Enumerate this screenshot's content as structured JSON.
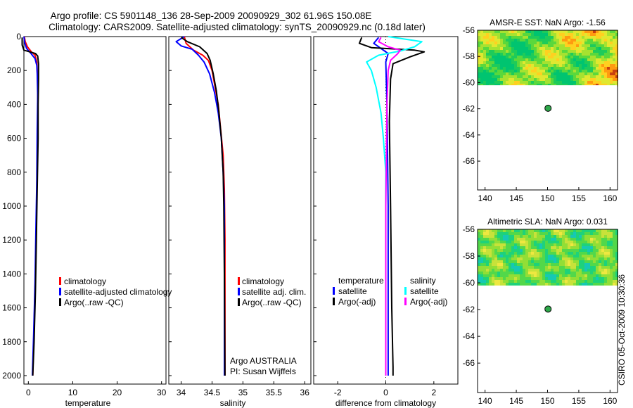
{
  "header": {
    "line1": "Argo profile: CS 5901148_136 28-Sep-2009 20090929_302 61.96S 150.08E",
    "line2": "Climatology: CARS2009. Satellite-adjusted climatology: synTS_20090929.nc (0.18d later)"
  },
  "stamp": "CSIRO 05-Oct-2009 10:30:36",
  "colors": {
    "red": "#ff0000",
    "blue": "#0000ff",
    "black": "#000000",
    "cyan": "#00ffff",
    "magenta": "#ff00ff",
    "float": "#2ea84a"
  },
  "chart_data": [
    {
      "type": "line",
      "id": "temperature",
      "xlabel": "temperature",
      "xlim": [
        -1,
        31
      ],
      "ylim": [
        2050,
        0
      ],
      "xticks": [
        0,
        10,
        20,
        30
      ],
      "yticks": [
        0,
        200,
        400,
        600,
        800,
        1000,
        1200,
        1400,
        1600,
        1800,
        2000
      ],
      "legend": [
        "climatology",
        "satellite-adjusted climatology",
        "Argo(..raw -QC)"
      ],
      "series": [
        {
          "name": "climatology",
          "color": "#ff0000",
          "width": 2,
          "points": [
            [
              -0.9,
              0
            ],
            [
              -0.7,
              30
            ],
            [
              -0.2,
              60
            ],
            [
              0.7,
              90
            ],
            [
              1.5,
              110
            ],
            [
              1.9,
              150
            ],
            [
              2.0,
              200
            ],
            [
              2.1,
              300
            ],
            [
              2.1,
              500
            ],
            [
              2.0,
              800
            ],
            [
              1.8,
              1100
            ],
            [
              1.6,
              1400
            ],
            [
              1.3,
              1700
            ],
            [
              1.0,
              2000
            ]
          ]
        },
        {
          "name": "satellite-adjusted climatology",
          "color": "#0000ff",
          "width": 2,
          "points": [
            [
              -1.0,
              0
            ],
            [
              -0.8,
              40
            ],
            [
              -0.4,
              70
            ],
            [
              0.6,
              100
            ],
            [
              1.5,
              130
            ],
            [
              1.9,
              170
            ],
            [
              2.0,
              220
            ],
            [
              2.1,
              350
            ],
            [
              2.0,
              550
            ],
            [
              1.9,
              850
            ],
            [
              1.7,
              1150
            ],
            [
              1.5,
              1450
            ],
            [
              1.2,
              1750
            ],
            [
              0.9,
              2000
            ]
          ]
        },
        {
          "name": "Argo(..raw -QC)",
          "color": "#000000",
          "width": 2,
          "points": [
            [
              -1.4,
              5
            ],
            [
              -1.4,
              50
            ],
            [
              -1.0,
              80
            ],
            [
              1.6,
              100
            ],
            [
              2.1,
              115
            ],
            [
              2.3,
              160
            ],
            [
              2.3,
              250
            ],
            [
              2.2,
              400
            ],
            [
              2.2,
              600
            ],
            [
              2.0,
              900
            ],
            [
              1.8,
              1200
            ],
            [
              1.6,
              1500
            ],
            [
              1.3,
              1800
            ],
            [
              1.0,
              2000
            ]
          ]
        }
      ]
    },
    {
      "type": "line",
      "id": "salinity",
      "xlabel": "salinity",
      "xlim": [
        33.8,
        36.1
      ],
      "ylim": [
        2050,
        0
      ],
      "xticks": [
        34,
        34.5,
        35,
        35.5,
        36
      ],
      "xticklabels": [
        "34",
        "34.5",
        "35",
        "35.5",
        "36"
      ],
      "legend": [
        "climatology",
        "satellite adj. clim.",
        "Argo(..raw -QC)"
      ],
      "annotation": [
        "Argo AUSTRALIA",
        "PI: Susan Wijffels"
      ],
      "series": [
        {
          "name": "climatology",
          "color": "#ff0000",
          "width": 2,
          "points": [
            [
              34.05,
              0
            ],
            [
              34.08,
              40
            ],
            [
              34.2,
              80
            ],
            [
              34.35,
              110
            ],
            [
              34.44,
              140
            ],
            [
              34.5,
              200
            ],
            [
              34.55,
              300
            ],
            [
              34.6,
              400
            ],
            [
              34.64,
              550
            ],
            [
              34.68,
              700
            ],
            [
              34.7,
              900
            ],
            [
              34.71,
              1200
            ],
            [
              34.71,
              1600
            ],
            [
              34.71,
              2000
            ]
          ]
        },
        {
          "name": "satellite adj. clim.",
          "color": "#0000ff",
          "width": 2,
          "points": [
            [
              34.05,
              0
            ],
            [
              33.92,
              30
            ],
            [
              34.0,
              55
            ],
            [
              34.18,
              75
            ],
            [
              34.28,
              110
            ],
            [
              34.37,
              150
            ],
            [
              34.46,
              220
            ],
            [
              34.54,
              330
            ],
            [
              34.6,
              450
            ],
            [
              34.65,
              600
            ],
            [
              34.68,
              800
            ],
            [
              34.7,
              1000
            ],
            [
              34.7,
              1400
            ],
            [
              34.7,
              2000
            ]
          ]
        },
        {
          "name": "Argo(..raw -QC)",
          "color": "#000000",
          "width": 2,
          "points": [
            [
              34.0,
              5
            ],
            [
              34.1,
              30
            ],
            [
              34.3,
              60
            ],
            [
              34.42,
              100
            ],
            [
              34.47,
              140
            ],
            [
              34.52,
              220
            ],
            [
              34.57,
              320
            ],
            [
              34.61,
              440
            ],
            [
              34.65,
              600
            ],
            [
              34.68,
              800
            ],
            [
              34.69,
              1000
            ],
            [
              34.7,
              1400
            ],
            [
              34.71,
              2000
            ]
          ]
        }
      ]
    },
    {
      "type": "line",
      "id": "difference",
      "xlabel": "difference from climatology",
      "xlim": [
        -3,
        3
      ],
      "ylim": [
        2050,
        0
      ],
      "xticks": [
        -2,
        0,
        2
      ],
      "xticklabels": [
        "-2",
        "0",
        "2"
      ],
      "legend_title_t": "temperature",
      "legend_title_s": "salinity",
      "legend_t": [
        "satellite",
        "Argo(-adj)"
      ],
      "legend_s": [
        "satellite",
        "Argo(-adj)"
      ],
      "series": [
        {
          "name": "temperature satellite",
          "color": "#0000ff",
          "width": 2,
          "points": [
            [
              -0.3,
              5
            ],
            [
              -0.5,
              40
            ],
            [
              -0.2,
              70
            ],
            [
              0.1,
              100
            ],
            [
              0.0,
              150
            ],
            [
              0.05,
              400
            ],
            [
              0.1,
              1000
            ],
            [
              0.1,
              2000
            ]
          ]
        },
        {
          "name": "temperature Argo(-adj)",
          "color": "#000000",
          "width": 2,
          "points": [
            [
              -1.0,
              5
            ],
            [
              -1.1,
              40
            ],
            [
              -0.6,
              65
            ],
            [
              1.2,
              80
            ],
            [
              1.6,
              90
            ],
            [
              1.0,
              120
            ],
            [
              0.3,
              160
            ],
            [
              0.2,
              250
            ],
            [
              0.15,
              500
            ],
            [
              0.2,
              1000
            ],
            [
              0.25,
              1600
            ],
            [
              0.3,
              1950
            ],
            [
              0.3,
              2000
            ]
          ]
        },
        {
          "name": "salinity satellite",
          "color": "#00ffff",
          "width": 2,
          "points": [
            [
              0.1,
              0
            ],
            [
              1.5,
              30
            ],
            [
              1.2,
              60
            ],
            [
              0.6,
              85
            ],
            [
              -0.3,
              110
            ],
            [
              -0.8,
              150
            ],
            [
              -0.6,
              200
            ],
            [
              -0.4,
              300
            ],
            [
              -0.2,
              450
            ],
            [
              -0.1,
              600
            ],
            [
              0.0,
              800
            ],
            [
              0.0,
              1200
            ],
            [
              0.0,
              2000
            ]
          ]
        },
        {
          "name": "salinity Argo(-adj)",
          "color": "#ff00ff",
          "width": 2,
          "points": [
            [
              -0.2,
              5
            ],
            [
              -0.3,
              30
            ],
            [
              0.1,
              60
            ],
            [
              0.6,
              80
            ],
            [
              0.5,
              100
            ],
            [
              0.2,
              140
            ],
            [
              0.1,
              200
            ],
            [
              0.05,
              400
            ],
            [
              0.0,
              1000
            ],
            [
              0.0,
              2000
            ]
          ]
        }
      ]
    },
    {
      "type": "heatmap",
      "id": "sst-map",
      "title": "AMSR-E SST: NaN Argo: -1.56",
      "xlim": [
        138.8,
        161.2
      ],
      "ylim": [
        -68.2,
        -56
      ],
      "xticks": [
        140,
        145,
        150,
        155,
        160
      ],
      "yticks": [
        -56,
        -58,
        -60,
        -62,
        -64,
        -66
      ],
      "data_ylim": [
        -60.2,
        -56
      ],
      "float": [
        150.08,
        -61.96
      ],
      "palette": [
        "#00c470",
        "#1ecb5a",
        "#5ad83c",
        "#a6e230",
        "#e0e830",
        "#ffd020",
        "#ff9a10",
        "#c84010",
        "#a01e08"
      ]
    },
    {
      "type": "heatmap",
      "id": "sla-map",
      "title": "Altimetric SLA: NaN Argo: 0.031",
      "xlim": [
        138.8,
        161.2
      ],
      "ylim": [
        -68.2,
        -56
      ],
      "xticks": [
        140,
        145,
        150,
        155,
        160
      ],
      "yticks": [
        -56,
        -58,
        -60,
        -62,
        -64,
        -66
      ],
      "data_ylim": [
        -60.2,
        -56
      ],
      "float": [
        150.08,
        -61.96
      ],
      "palette": [
        "#16c8b4",
        "#1ed27a",
        "#52d84a",
        "#92de36",
        "#c8e23a",
        "#eee840",
        "#ffb450",
        "#ff7060"
      ]
    }
  ]
}
